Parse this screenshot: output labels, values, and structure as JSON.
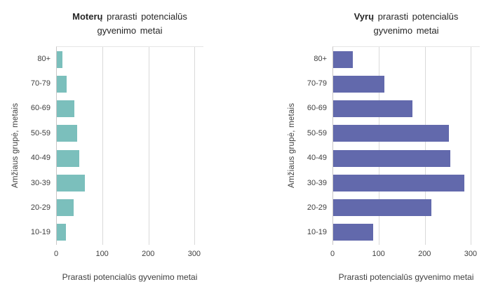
{
  "figure": {
    "axis": {
      "x_title": "Prarasti potencialūs gyvenimo metai",
      "y_title": "Amžiaus grupė, metais",
      "x_ticks": [
        0,
        100,
        200,
        300
      ],
      "x_max": 320
    },
    "categories": [
      "80+",
      "70-79",
      "60-69",
      "50-59",
      "40-49",
      "30-39",
      "20-29",
      "10-19"
    ],
    "charts": [
      {
        "title_bold": "Moterų",
        "title_rest": "prarasti potencialūs",
        "title_line2": "gyvenimo metai",
        "bar_color": "#7BBFBC",
        "values": [
          13,
          21,
          38,
          44,
          49,
          62,
          37,
          20
        ]
      },
      {
        "title_bold": "Vyrų",
        "title_rest": "prarasti potencialūs",
        "title_line2": "gyvenimo metai",
        "bar_color": "#6269AC",
        "values": [
          43,
          112,
          173,
          253,
          255,
          286,
          214,
          87
        ]
      }
    ],
    "colors": {
      "gridline": "#D9D9D9",
      "axis_line": "#C9C7C7",
      "plot_top_border": "#E6E6E6",
      "text": "#3F3F3F"
    }
  },
  "chart_data": [
    {
      "type": "bar",
      "orientation": "horizontal",
      "title": "Moterų prarasti potencialūs gyvenimo metai",
      "categories": [
        "80+",
        "70-79",
        "60-69",
        "50-59",
        "40-49",
        "30-39",
        "20-29",
        "10-19"
      ],
      "values": [
        13,
        21,
        38,
        44,
        49,
        62,
        37,
        20
      ],
      "xlabel": "Prarasti potencialūs gyvenimo metai",
      "ylabel": "Amžiaus grupė, metais",
      "xlim": [
        0,
        320
      ],
      "xticks": [
        0,
        100,
        200,
        300
      ],
      "bar_color": "#7BBFBC",
      "grid": true,
      "legend": false
    },
    {
      "type": "bar",
      "orientation": "horizontal",
      "title": "Vyrų prarasti potencialūs gyvenimo metai",
      "categories": [
        "80+",
        "70-79",
        "60-69",
        "50-59",
        "40-49",
        "30-39",
        "20-29",
        "10-19"
      ],
      "values": [
        43,
        112,
        173,
        253,
        255,
        286,
        214,
        87
      ],
      "xlabel": "Prarasti potencialūs gyvenimo metai",
      "ylabel": "Amžiaus grupė, metais",
      "xlim": [
        0,
        320
      ],
      "xticks": [
        0,
        100,
        200,
        300
      ],
      "bar_color": "#6269AC",
      "grid": true,
      "legend": false
    }
  ]
}
